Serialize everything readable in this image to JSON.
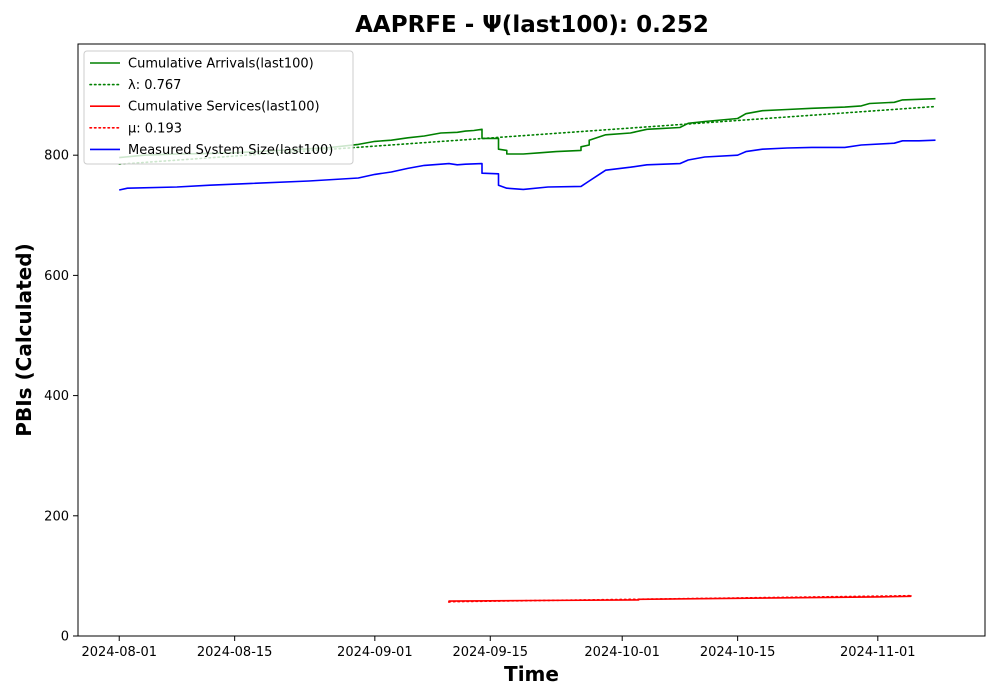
{
  "chart_data": {
    "type": "line",
    "title": "AAPRFE -  Ψ(last100): 0.252",
    "xlabel": "Time",
    "ylabel": "PBIs (Calculated)",
    "xlim": [
      "2024-07-27",
      "2024-11-14"
    ],
    "ylim": [
      0,
      985
    ],
    "x_ticks": [
      "2024-08-01",
      "2024-08-15",
      "2024-09-01",
      "2024-09-15",
      "2024-10-01",
      "2024-10-15",
      "2024-11-01"
    ],
    "y_ticks": [
      0,
      200,
      400,
      600,
      800
    ],
    "grid": false,
    "legend_position": "top-left",
    "series": [
      {
        "name": "Cumulative Arrivals(last100)",
        "color": "#008000",
        "style": "solid",
        "points": [
          [
            "2024-08-01",
            796
          ],
          [
            "2024-08-04",
            800
          ],
          [
            "2024-08-08",
            802
          ],
          [
            "2024-08-12",
            803
          ],
          [
            "2024-08-15",
            804
          ],
          [
            "2024-08-19",
            807
          ],
          [
            "2024-08-23",
            810
          ],
          [
            "2024-08-26",
            812
          ],
          [
            "2024-08-30",
            818
          ],
          [
            "2024-09-01",
            823
          ],
          [
            "2024-09-03",
            825
          ],
          [
            "2024-09-05",
            829
          ],
          [
            "2024-09-07",
            832
          ],
          [
            "2024-09-09",
            837
          ],
          [
            "2024-09-11",
            838
          ],
          [
            "2024-09-12",
            840
          ],
          [
            "2024-09-13",
            841
          ],
          [
            "2024-09-14",
            843
          ],
          [
            "2024-09-14",
            828
          ],
          [
            "2024-09-16",
            828
          ],
          [
            "2024-09-16",
            810
          ],
          [
            "2024-09-17",
            808
          ],
          [
            "2024-09-17",
            802
          ],
          [
            "2024-09-19",
            802
          ],
          [
            "2024-09-21",
            804
          ],
          [
            "2024-09-23",
            806
          ],
          [
            "2024-09-26",
            808
          ],
          [
            "2024-09-26",
            814
          ],
          [
            "2024-09-27",
            817
          ],
          [
            "2024-09-27",
            825
          ],
          [
            "2024-09-29",
            834
          ],
          [
            "2024-10-02",
            837
          ],
          [
            "2024-10-04",
            843
          ],
          [
            "2024-10-08",
            846
          ],
          [
            "2024-10-09",
            853
          ],
          [
            "2024-10-11",
            856
          ],
          [
            "2024-10-15",
            861
          ],
          [
            "2024-10-16",
            869
          ],
          [
            "2024-10-18",
            874
          ],
          [
            "2024-10-21",
            876
          ],
          [
            "2024-10-24",
            878
          ],
          [
            "2024-10-28",
            880
          ],
          [
            "2024-10-30",
            882
          ],
          [
            "2024-10-31",
            886
          ],
          [
            "2024-11-03",
            888
          ],
          [
            "2024-11-04",
            892
          ],
          [
            "2024-11-06",
            893
          ],
          [
            "2024-11-08",
            894
          ]
        ]
      },
      {
        "name": "λ: 0.767",
        "color": "#008000",
        "style": "dotted",
        "points": [
          [
            "2024-08-01",
            785
          ],
          [
            "2024-11-08",
            881
          ]
        ]
      },
      {
        "name": "Cumulative Services(last100)",
        "color": "#ff0000",
        "style": "solid",
        "points": [
          [
            "2024-09-10",
            55
          ],
          [
            "2024-09-10",
            58
          ],
          [
            "2024-09-20",
            59
          ],
          [
            "2024-10-03",
            60
          ],
          [
            "2024-10-03",
            61
          ],
          [
            "2024-10-18",
            63
          ],
          [
            "2024-11-01",
            65
          ],
          [
            "2024-11-05",
            66
          ],
          [
            "2024-11-05",
            68
          ]
        ]
      },
      {
        "name": "μ: 0.193",
        "color": "#ff0000",
        "style": "dotted",
        "points": [
          [
            "2024-09-10",
            57
          ],
          [
            "2024-11-05",
            67
          ]
        ]
      },
      {
        "name": "Measured System Size(last100)",
        "color": "#0000ff",
        "style": "solid",
        "points": [
          [
            "2024-08-01",
            742
          ],
          [
            "2024-08-02",
            745
          ],
          [
            "2024-08-08",
            747
          ],
          [
            "2024-08-12",
            750
          ],
          [
            "2024-08-17",
            753
          ],
          [
            "2024-08-24",
            757
          ],
          [
            "2024-08-30",
            762
          ],
          [
            "2024-09-01",
            768
          ],
          [
            "2024-09-03",
            772
          ],
          [
            "2024-09-05",
            778
          ],
          [
            "2024-09-07",
            783
          ],
          [
            "2024-09-09",
            785
          ],
          [
            "2024-09-10",
            786
          ],
          [
            "2024-09-11",
            784
          ],
          [
            "2024-09-12",
            785
          ],
          [
            "2024-09-14",
            786
          ],
          [
            "2024-09-14",
            770
          ],
          [
            "2024-09-16",
            769
          ],
          [
            "2024-09-16",
            750
          ],
          [
            "2024-09-17",
            745
          ],
          [
            "2024-09-19",
            743
          ],
          [
            "2024-09-22",
            747
          ],
          [
            "2024-09-26",
            748
          ],
          [
            "2024-09-27",
            757
          ],
          [
            "2024-09-28",
            766
          ],
          [
            "2024-09-29",
            775
          ],
          [
            "2024-10-02",
            780
          ],
          [
            "2024-10-04",
            784
          ],
          [
            "2024-10-08",
            786
          ],
          [
            "2024-10-09",
            792
          ],
          [
            "2024-10-11",
            797
          ],
          [
            "2024-10-15",
            800
          ],
          [
            "2024-10-16",
            806
          ],
          [
            "2024-10-18",
            810
          ],
          [
            "2024-10-21",
            812
          ],
          [
            "2024-10-24",
            813
          ],
          [
            "2024-10-28",
            813
          ],
          [
            "2024-10-30",
            817
          ],
          [
            "2024-11-03",
            820
          ],
          [
            "2024-11-04",
            824
          ],
          [
            "2024-11-06",
            824
          ],
          [
            "2024-11-08",
            825
          ]
        ]
      }
    ]
  }
}
